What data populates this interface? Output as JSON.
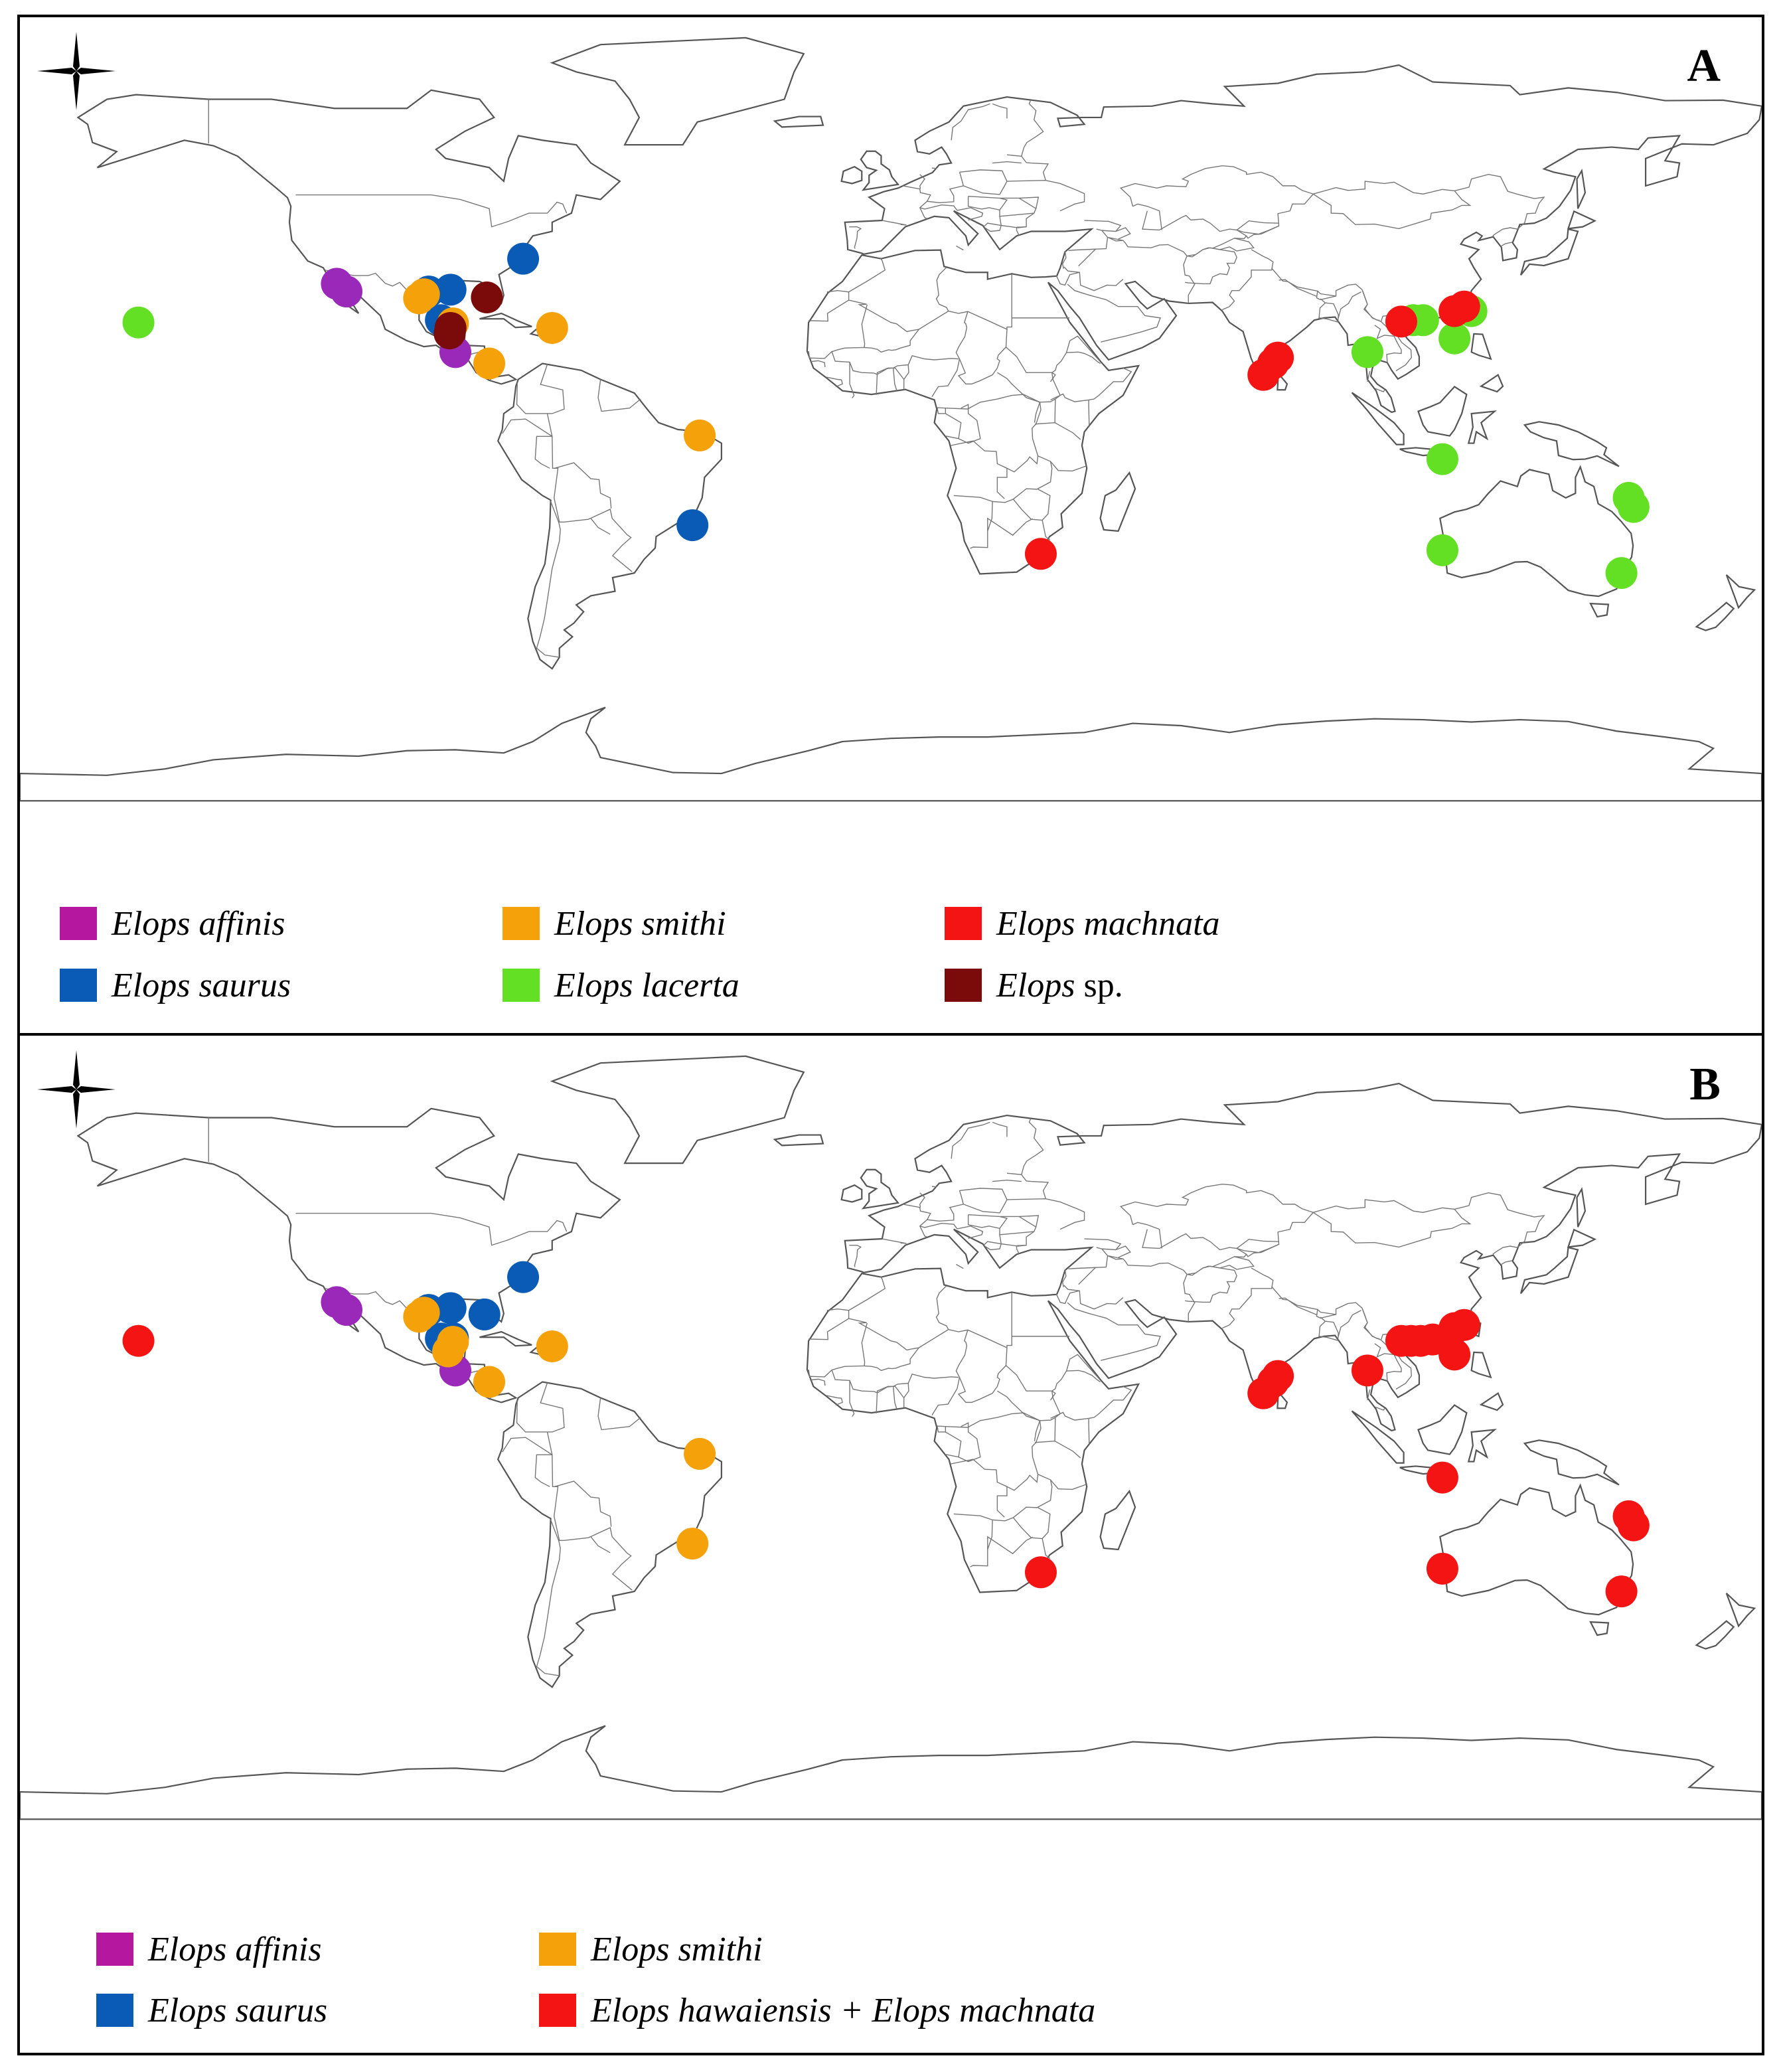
{
  "colors": {
    "affinis": "#b5179e",
    "saurus": "#0a5bb5",
    "smithi": "#f5a20a",
    "lacerta": "#63e024",
    "machnata": "#f41414",
    "sp": "#7b0a0a",
    "marker_purple": "#9a28b8"
  },
  "panels": [
    {
      "id": "A",
      "label": "A",
      "legend": [
        {
          "key": "affinis",
          "name": "Elops affinis",
          "suffix": ""
        },
        {
          "key": "smithi",
          "name": "Elops smithi",
          "suffix": ""
        },
        {
          "key": "machnata",
          "name": "Elops machnata",
          "suffix": ""
        },
        {
          "key": "saurus",
          "name": "Elops saurus",
          "suffix": ""
        },
        {
          "key": "lacerta",
          "name": "Elops lacerta",
          "suffix": ""
        },
        {
          "key": "sp",
          "name": "Elops",
          "suffix": " sp."
        }
      ],
      "points": [
        {
          "lon": -114.5,
          "lat": 29.5,
          "species": "affinis"
        },
        {
          "lon": -112.5,
          "lat": 27.8,
          "species": "affinis"
        },
        {
          "lon": -90.0,
          "lat": 14.5,
          "species": "affinis"
        },
        {
          "lon": -76.0,
          "lat": 35.0,
          "species": "saurus"
        },
        {
          "lon": -95.5,
          "lat": 27.8,
          "species": "saurus"
        },
        {
          "lon": -91.0,
          "lat": 28.2,
          "species": "saurus"
        },
        {
          "lon": -93.0,
          "lat": 21.5,
          "species": "saurus"
        },
        {
          "lon": -41.0,
          "lat": -23.5,
          "species": "saurus"
        },
        {
          "lon": -97.5,
          "lat": 26.3,
          "species": "smithi"
        },
        {
          "lon": -96.5,
          "lat": 27.2,
          "species": "smithi"
        },
        {
          "lon": -90.5,
          "lat": 20.8,
          "species": "smithi"
        },
        {
          "lon": -83.0,
          "lat": 12.0,
          "species": "smithi"
        },
        {
          "lon": -70.0,
          "lat": 19.8,
          "species": "smithi"
        },
        {
          "lon": -39.5,
          "lat": -3.8,
          "species": "smithi"
        },
        {
          "lon": -83.5,
          "lat": 26.5,
          "species": "sp"
        },
        {
          "lon": -91.0,
          "lat": 19.8,
          "species": "sp"
        },
        {
          "lon": -91.2,
          "lat": 18.6,
          "species": "sp"
        },
        {
          "lon": -155.5,
          "lat": 21.0,
          "species": "lacerta"
        },
        {
          "lon": 98.5,
          "lat": 14.5,
          "species": "lacerta"
        },
        {
          "lon": 108.0,
          "lat": 21.5,
          "species": "lacerta"
        },
        {
          "lon": 110.0,
          "lat": 21.5,
          "species": "lacerta"
        },
        {
          "lon": 116.5,
          "lat": 17.5,
          "species": "lacerta"
        },
        {
          "lon": 120.0,
          "lat": 23.5,
          "species": "lacerta"
        },
        {
          "lon": 114.0,
          "lat": -9.0,
          "species": "lacerta"
        },
        {
          "lon": 152.5,
          "lat": -17.5,
          "species": "lacerta"
        },
        {
          "lon": 153.5,
          "lat": -19.5,
          "species": "lacerta"
        },
        {
          "lon": 114.0,
          "lat": -29.0,
          "species": "lacerta"
        },
        {
          "lon": 151.0,
          "lat": -34.0,
          "species": "lacerta"
        },
        {
          "lon": 80.0,
          "lat": 13.3,
          "species": "machnata"
        },
        {
          "lon": 79.0,
          "lat": 12.0,
          "species": "machnata"
        },
        {
          "lon": 77.0,
          "lat": 9.5,
          "species": "machnata"
        },
        {
          "lon": 105.5,
          "lat": 21.2,
          "species": "machnata"
        },
        {
          "lon": 116.5,
          "lat": 23.5,
          "species": "machnata"
        },
        {
          "lon": 118.5,
          "lat": 24.5,
          "species": "machnata"
        },
        {
          "lon": 31.0,
          "lat": -29.8,
          "species": "machnata"
        }
      ]
    },
    {
      "id": "B",
      "label": "B",
      "legend": [
        {
          "key": "affinis",
          "name": "Elops affinis",
          "suffix": ""
        },
        {
          "key": "smithi",
          "name": "Elops smithi",
          "suffix": ""
        },
        {
          "key": "saurus",
          "name": "Elops saurus",
          "suffix": ""
        },
        {
          "key": "machnata",
          "name": "Elops hawaiensis + Elops machnata",
          "suffix": ""
        }
      ],
      "points": [
        {
          "lon": -114.5,
          "lat": 29.5,
          "species": "affinis"
        },
        {
          "lon": -112.5,
          "lat": 27.8,
          "species": "affinis"
        },
        {
          "lon": -90.0,
          "lat": 14.5,
          "species": "affinis"
        },
        {
          "lon": -76.0,
          "lat": 35.0,
          "species": "saurus"
        },
        {
          "lon": -95.5,
          "lat": 27.8,
          "species": "saurus"
        },
        {
          "lon": -91.0,
          "lat": 28.2,
          "species": "saurus"
        },
        {
          "lon": -84.0,
          "lat": 26.8,
          "species": "saurus"
        },
        {
          "lon": -93.0,
          "lat": 21.5,
          "species": "saurus"
        },
        {
          "lon": -90.5,
          "lat": 21.6,
          "species": "saurus"
        },
        {
          "lon": -97.5,
          "lat": 26.3,
          "species": "smithi"
        },
        {
          "lon": -96.5,
          "lat": 27.2,
          "species": "smithi"
        },
        {
          "lon": -90.5,
          "lat": 20.8,
          "species": "smithi"
        },
        {
          "lon": -91.5,
          "lat": 18.7,
          "species": "smithi"
        },
        {
          "lon": -83.0,
          "lat": 12.0,
          "species": "smithi"
        },
        {
          "lon": -70.0,
          "lat": 19.8,
          "species": "smithi"
        },
        {
          "lon": -39.5,
          "lat": -3.8,
          "species": "smithi"
        },
        {
          "lon": -41.0,
          "lat": -23.5,
          "species": "smithi"
        },
        {
          "lon": -155.5,
          "lat": 21.0,
          "species": "machnata"
        },
        {
          "lon": 80.0,
          "lat": 13.3,
          "species": "machnata"
        },
        {
          "lon": 79.0,
          "lat": 12.0,
          "species": "machnata"
        },
        {
          "lon": 77.0,
          "lat": 9.5,
          "species": "machnata"
        },
        {
          "lon": 98.5,
          "lat": 14.5,
          "species": "machnata"
        },
        {
          "lon": 105.5,
          "lat": 21.0,
          "species": "machnata"
        },
        {
          "lon": 107.5,
          "lat": 21.0,
          "species": "machnata"
        },
        {
          "lon": 109.5,
          "lat": 21.0,
          "species": "machnata"
        },
        {
          "lon": 112.0,
          "lat": 21.3,
          "species": "machnata"
        },
        {
          "lon": 116.5,
          "lat": 23.8,
          "species": "machnata"
        },
        {
          "lon": 118.5,
          "lat": 24.5,
          "species": "machnata"
        },
        {
          "lon": 116.5,
          "lat": 18.0,
          "species": "machnata"
        },
        {
          "lon": 114.0,
          "lat": -9.0,
          "species": "machnata"
        },
        {
          "lon": 152.5,
          "lat": -17.5,
          "species": "machnata"
        },
        {
          "lon": 153.5,
          "lat": -19.5,
          "species": "machnata"
        },
        {
          "lon": 114.0,
          "lat": -29.0,
          "species": "machnata"
        },
        {
          "lon": 151.0,
          "lat": -34.0,
          "species": "machnata"
        },
        {
          "lon": 31.0,
          "lat": -29.8,
          "species": "machnata"
        }
      ]
    }
  ]
}
